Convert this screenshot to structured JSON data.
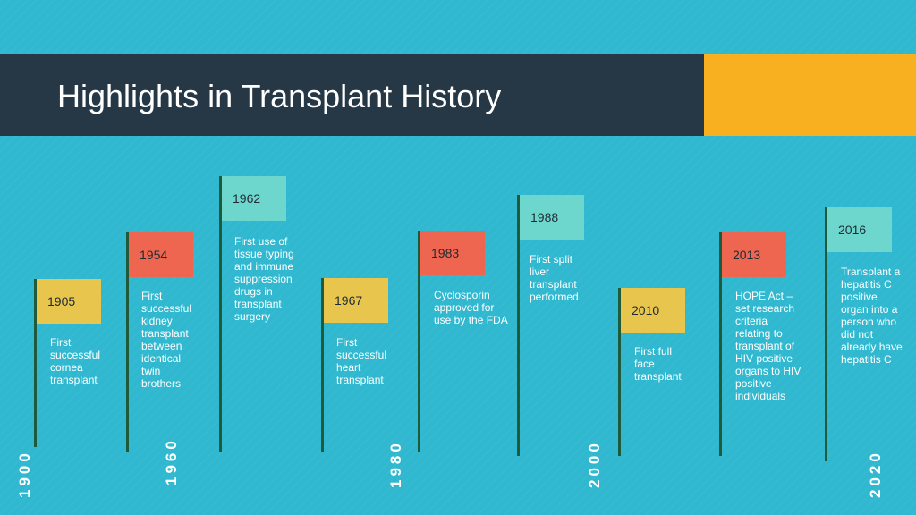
{
  "title": "Highlights in Transplant History",
  "colors": {
    "banner": "#263746",
    "accent": "#f9b020",
    "background": "#2fb8cf",
    "flag_yellow": "#e8c54c",
    "flag_red": "#ef6650",
    "flag_teal": "#6ed7cd"
  },
  "axis_labels": [
    "1900",
    "1960",
    "1980",
    "2000",
    "2020"
  ],
  "events": [
    {
      "year": "1905",
      "desc": [
        "First",
        "successful",
        "cornea",
        "transplant"
      ]
    },
    {
      "year": "1954",
      "desc": [
        "First",
        "successful",
        "kidney",
        "transplant",
        "between",
        "identical",
        "twin",
        "brothers"
      ]
    },
    {
      "year": "1962",
      "desc": [
        "First use of",
        "tissue typing",
        "and immune",
        "suppression",
        "drugs in",
        "transplant",
        "surgery"
      ]
    },
    {
      "year": "1967",
      "desc": [
        "First",
        "successful",
        "heart",
        "transplant"
      ]
    },
    {
      "year": "1983",
      "desc": [
        "Cyclosporin",
        "approved for",
        "use by the FDA"
      ]
    },
    {
      "year": "1988",
      "desc": [
        "First split",
        "liver",
        "transplant",
        "performed"
      ]
    },
    {
      "year": "2010",
      "desc": [
        "First full",
        "face",
        "transplant"
      ]
    },
    {
      "year": "2013",
      "desc": [
        "HOPE Act –",
        "set research",
        "criteria",
        "relating to",
        "transplant  of",
        "HIV positive",
        "organs to HIV",
        "positive",
        "individuals"
      ]
    },
    {
      "year": "2016",
      "desc": [
        "Transplant  a",
        "hepatitis C",
        "positive",
        "organ into a",
        "person who",
        "did not",
        "already have",
        "hepatitis C"
      ]
    }
  ]
}
